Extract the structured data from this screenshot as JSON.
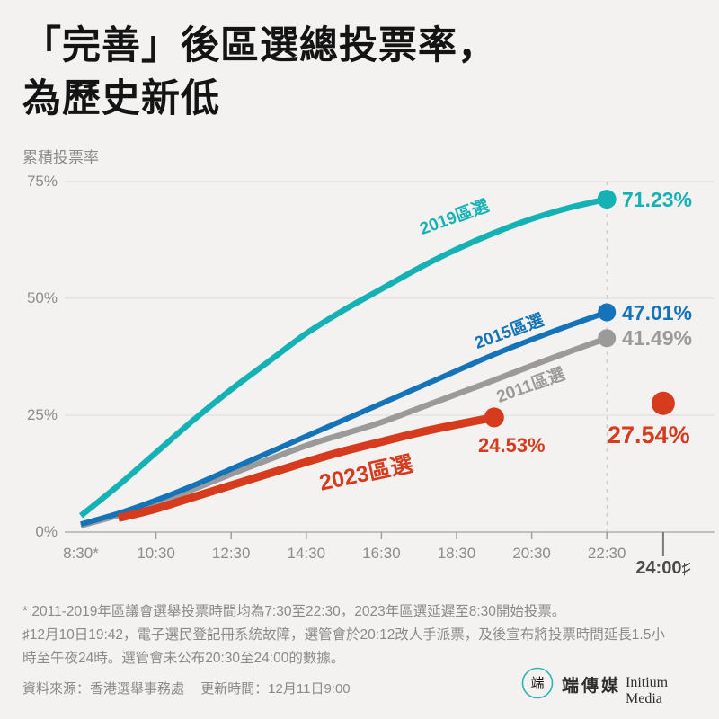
{
  "title": {
    "line1": "「完善」後區選總投票率，",
    "line2": "為歷史新低"
  },
  "chart_data": {
    "type": "line",
    "ylabel": "累積投票率",
    "ylim": [
      0,
      75
    ],
    "grid": true,
    "y_ticks": [
      {
        "label": "75%",
        "value": 75
      },
      {
        "label": "50%",
        "value": 50
      },
      {
        "label": "25%",
        "value": 25
      },
      {
        "label": "0%",
        "value": 0
      }
    ],
    "x_ticks": [
      {
        "label": "8:30*",
        "hour": 8.5,
        "tick": false
      },
      {
        "label": "10:30",
        "hour": 10.5,
        "tick": true
      },
      {
        "label": "12:30",
        "hour": 12.5,
        "tick": true
      },
      {
        "label": "14:30",
        "hour": 14.5,
        "tick": true
      },
      {
        "label": "16:30",
        "hour": 16.5,
        "tick": true
      },
      {
        "label": "18:30",
        "hour": 18.5,
        "tick": true
      },
      {
        "label": "20:30",
        "hour": 20.5,
        "tick": true
      },
      {
        "label": "22:30",
        "hour": 22.5,
        "tick": true
      }
    ],
    "x_special_tick": {
      "label": "24:00♯",
      "hour": 24
    },
    "guide_hour": 22.5,
    "series": [
      {
        "name": "2019區選",
        "color": "#14b2b5",
        "final_label": "71.23%",
        "points": [
          [
            8.5,
            3.5
          ],
          [
            9.5,
            10
          ],
          [
            10.5,
            17
          ],
          [
            11.5,
            24
          ],
          [
            12.5,
            30.5
          ],
          [
            13.5,
            36.5
          ],
          [
            14.5,
            42.5
          ],
          [
            15.5,
            47.5
          ],
          [
            16.5,
            52
          ],
          [
            17.5,
            56.5
          ],
          [
            18.5,
            60.5
          ],
          [
            19.5,
            64
          ],
          [
            20.5,
            67
          ],
          [
            21.5,
            69.4
          ],
          [
            22.5,
            71.23
          ]
        ]
      },
      {
        "name": "2015區選",
        "color": "#1573ba",
        "final_label": "47.01%",
        "points": [
          [
            8.5,
            1.7
          ],
          [
            9.5,
            4
          ],
          [
            10.5,
            6.8
          ],
          [
            11.5,
            10
          ],
          [
            12.5,
            13.5
          ],
          [
            13.5,
            17
          ],
          [
            14.5,
            20.5
          ],
          [
            15.5,
            24
          ],
          [
            16.5,
            27.5
          ],
          [
            17.5,
            31
          ],
          [
            18.5,
            34.5
          ],
          [
            19.5,
            38
          ],
          [
            20.5,
            41.2
          ],
          [
            21.5,
            44.2
          ],
          [
            22.5,
            47.01
          ]
        ]
      },
      {
        "name": "2011區選",
        "color": "#9a9a9a",
        "final_label": "41.49%",
        "points": [
          [
            8.5,
            1.4
          ],
          [
            9.5,
            3.6
          ],
          [
            10.5,
            6.2
          ],
          [
            11.5,
            9.2
          ],
          [
            12.5,
            12.4
          ],
          [
            13.5,
            15.5
          ],
          [
            14.5,
            18.5
          ],
          [
            15.5,
            21
          ],
          [
            16.5,
            23.5
          ],
          [
            17.5,
            26.5
          ],
          [
            18.5,
            29.5
          ],
          [
            19.5,
            32.5
          ],
          [
            20.5,
            35.6
          ],
          [
            21.5,
            38.6
          ],
          [
            22.5,
            41.49
          ]
        ]
      },
      {
        "name": "2023區選",
        "color": "#d63b1e",
        "final_label": "24.53%",
        "points": [
          [
            9.5,
            3
          ],
          [
            10.5,
            5
          ],
          [
            11.5,
            7.5
          ],
          [
            12.5,
            10
          ],
          [
            13.5,
            12.5
          ],
          [
            14.5,
            15
          ],
          [
            15.5,
            17.3
          ],
          [
            16.5,
            19.3
          ],
          [
            17.5,
            21.3
          ],
          [
            18.5,
            23
          ],
          [
            19.5,
            24.53
          ]
        ]
      }
    ],
    "isolated_point": {
      "series": "2023區選",
      "hour": 24,
      "value": 27.54,
      "label": "27.54%",
      "color": "#d63b1e"
    }
  },
  "footnotes": [
    "* 2011-2019年區議會選舉投票時間均為7:30至22:30，2023年區選延遲至8:30開始投票。",
    "♯12月10日19:42，電子選民登記冊系統故障，選管會於20:12改人手派票，及後宣布將投票時間延長1.5小",
    "時至午夜24時。選管會未公布20:30至24:00的數據。"
  ],
  "source": {
    "label": "資料來源：香港選舉事務處",
    "updated": "更新時間：12月11日9:00"
  },
  "logo": {
    "mark": "端",
    "name_zh": "端傳媒",
    "name_en": "Initium Media",
    "circle_color": "#2cb4b4"
  }
}
